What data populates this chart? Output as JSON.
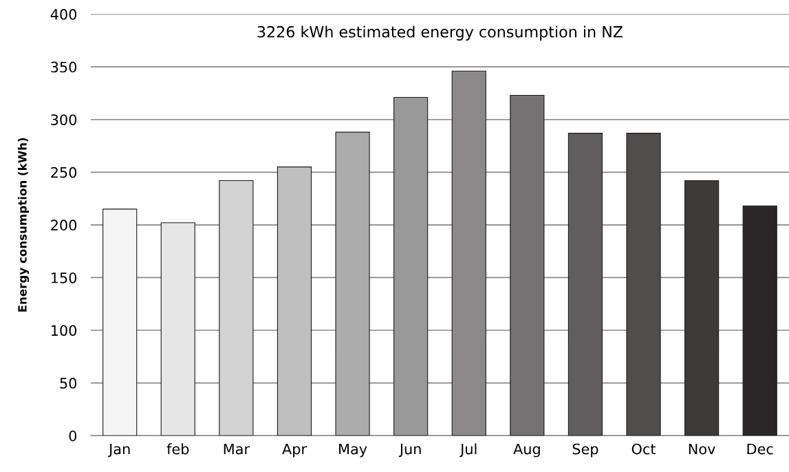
{
  "chart_data": {
    "type": "bar",
    "title": "3226 kWh estimated energy consumption in NZ",
    "ylabel": "Energy consumption (kWh)",
    "categories": [
      "Jan",
      "feb",
      "Mar",
      "Apr",
      "May",
      "Jun",
      "Jul",
      "Aug",
      "Sep",
      "Oct",
      "Nov",
      "Dec"
    ],
    "values": [
      215,
      202,
      242,
      255,
      288,
      321,
      346,
      323,
      287,
      287,
      242,
      218
    ],
    "colors": [
      "#f5f5f5",
      "#e6e6e6",
      "#d3d3d3",
      "#c0bfbf",
      "#acabab",
      "#9a9999",
      "#8a8888",
      "#747272",
      "#605e5e",
      "#504d4d",
      "#3d3b3a",
      "#2a2627"
    ],
    "ylim": [
      0,
      400
    ],
    "yticks": [
      0,
      50,
      100,
      150,
      200,
      250,
      300,
      350,
      400
    ],
    "grid": "y"
  }
}
